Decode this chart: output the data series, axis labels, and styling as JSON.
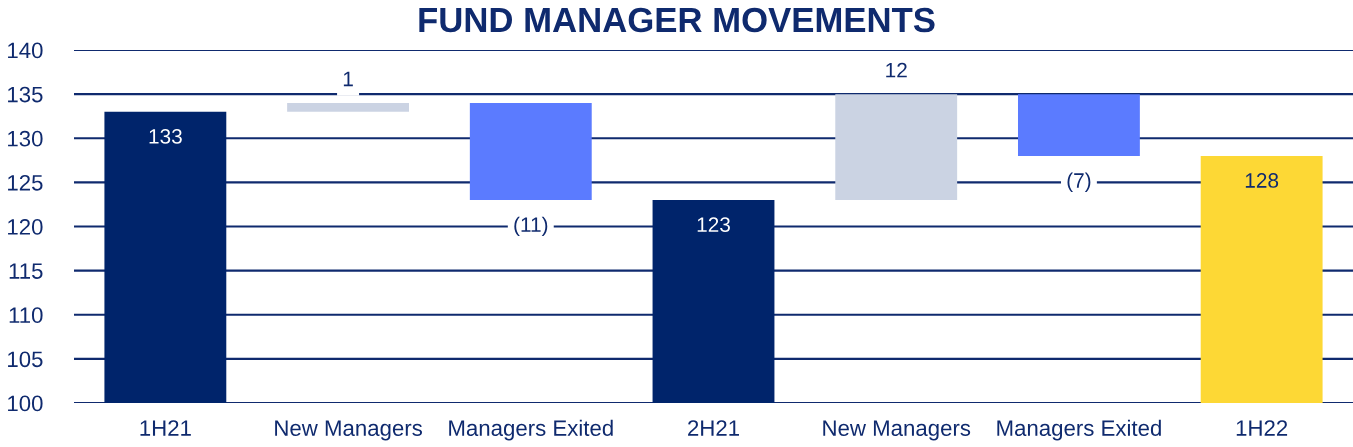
{
  "chart_data": {
    "type": "bar",
    "title": "FUND MANAGER MOVEMENTS",
    "categories": [
      "1H21",
      "New Managers",
      "Managers Exited",
      "2H21",
      "New Managers",
      "Managers Exited",
      "1H22"
    ],
    "values": [
      133,
      1,
      -11,
      123,
      12,
      -7,
      128
    ],
    "base": [
      null,
      133,
      134,
      null,
      123,
      135,
      null
    ],
    "colors": [
      "#00246b",
      "#cbd3e3",
      "#5b7bff",
      "#00246b",
      "#cbd3e3",
      "#5b7bff",
      "#fdd835"
    ],
    "value_labels": [
      "133",
      "1",
      "(11)",
      "123",
      "12",
      "(7)",
      "128"
    ],
    "ylim": [
      100,
      140
    ],
    "yticks": [
      100,
      105,
      110,
      115,
      120,
      125,
      130,
      135,
      140
    ],
    "grid": "y",
    "legend": false
  }
}
